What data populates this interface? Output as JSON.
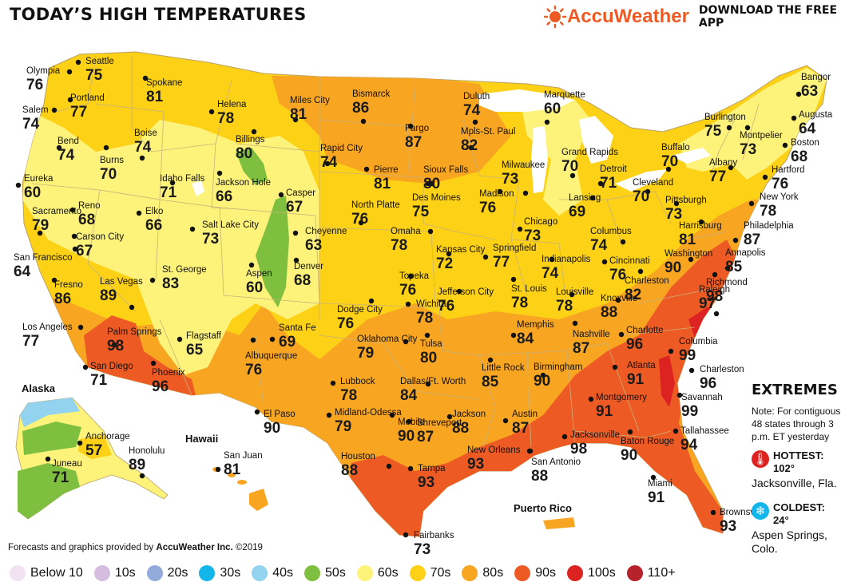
{
  "header": {
    "title": "TODAY’S HIGH TEMPERATURES",
    "brand": "AccuWeather",
    "cta": "DOWNLOAD THE FREE APP"
  },
  "colors": {
    "sixties": "#fdf27a",
    "seventies": "#fcd116",
    "eighties": "#f8a522",
    "nineties": "#ee5a24",
    "hundreds": "#dd2222",
    "fifties": "#7fbf3f",
    "forties": "#93d3f0",
    "state_line": "#c9b27a",
    "water": "#ffffff"
  },
  "regions": {
    "alaska": "Alaska",
    "hawaii": "Hawaii",
    "puerto_rico": "Puerto Rico"
  },
  "cities": [
    {
      "name": "Olympia",
      "temp": "76"
    },
    {
      "name": "Seattle",
      "temp": "75"
    },
    {
      "name": "Spokane",
      "temp": "81"
    },
    {
      "name": "Portland",
      "temp": "77"
    },
    {
      "name": "Salem",
      "temp": "74"
    },
    {
      "name": "Helena",
      "temp": "78"
    },
    {
      "name": "Miles City",
      "temp": "81"
    },
    {
      "name": "Bismarck",
      "temp": "86"
    },
    {
      "name": "Duluth",
      "temp": "74"
    },
    {
      "name": "Marquette",
      "temp": "60"
    },
    {
      "name": "Bangor",
      "temp": "63"
    },
    {
      "name": "Burlington",
      "temp": "75"
    },
    {
      "name": "Augusta",
      "temp": "64"
    },
    {
      "name": "Montpelier",
      "temp": "73"
    },
    {
      "name": "Boston",
      "temp": "68"
    },
    {
      "name": "Bend",
      "temp": "74"
    },
    {
      "name": "Boise",
      "temp": "74"
    },
    {
      "name": "Burns",
      "temp": "70"
    },
    {
      "name": "Billings",
      "temp": "80"
    },
    {
      "name": "Fargo",
      "temp": "87"
    },
    {
      "name": "Mpls-St. Paul",
      "temp": "82"
    },
    {
      "name": "Grand Rapids",
      "temp": "70"
    },
    {
      "name": "Buffalo",
      "temp": "70"
    },
    {
      "name": "Albany",
      "temp": "77"
    },
    {
      "name": "Hartford",
      "temp": "76"
    },
    {
      "name": "Eureka",
      "temp": "60"
    },
    {
      "name": "Idaho Falls",
      "temp": "71"
    },
    {
      "name": "Jackson Hole",
      "temp": "66"
    },
    {
      "name": "Rapid City",
      "temp": "74"
    },
    {
      "name": "Pierre",
      "temp": "81"
    },
    {
      "name": "Sioux Falls",
      "temp": "80"
    },
    {
      "name": "Milwaukee",
      "temp": "73"
    },
    {
      "name": "Detroit",
      "temp": "71"
    },
    {
      "name": "Cleveland",
      "temp": "70"
    },
    {
      "name": "Pittsburgh",
      "temp": "73"
    },
    {
      "name": "New York",
      "temp": "78"
    },
    {
      "name": "Reno",
      "temp": "68"
    },
    {
      "name": "Elko",
      "temp": "66"
    },
    {
      "name": "Casper",
      "temp": "67"
    },
    {
      "name": "Des Moines",
      "temp": "75"
    },
    {
      "name": "Madison",
      "temp": "76"
    },
    {
      "name": "Lansing",
      "temp": "69"
    },
    {
      "name": "Sacramento",
      "temp": "79"
    },
    {
      "name": "Carson City",
      "temp": "67"
    },
    {
      "name": "Salt Lake City",
      "temp": "73"
    },
    {
      "name": "Cheyenne",
      "temp": "63"
    },
    {
      "name": "North Platte",
      "temp": "76"
    },
    {
      "name": "Omaha",
      "temp": "78"
    },
    {
      "name": "Chicago",
      "temp": "73"
    },
    {
      "name": "Columbus",
      "temp": "74"
    },
    {
      "name": "Harrisburg",
      "temp": "81"
    },
    {
      "name": "Philadelphia",
      "temp": "87"
    },
    {
      "name": "San Francisco",
      "temp": "64"
    },
    {
      "name": "Denver",
      "temp": "68"
    },
    {
      "name": "Kansas City",
      "temp": "72"
    },
    {
      "name": "Springfield",
      "temp": "77"
    },
    {
      "name": "Indianapolis",
      "temp": "74"
    },
    {
      "name": "Cincinnati",
      "temp": "76"
    },
    {
      "name": "Washington",
      "temp": "90"
    },
    {
      "name": "Annapolis",
      "temp": "85"
    },
    {
      "name": "Aspen",
      "temp": "60"
    },
    {
      "name": "St. George",
      "temp": "83"
    },
    {
      "name": "Fresno",
      "temp": "86"
    },
    {
      "name": "Las Vegas",
      "temp": "89"
    },
    {
      "name": "Topeka",
      "temp": "76"
    },
    {
      "name": "Jefferson City",
      "temp": "76"
    },
    {
      "name": "St. Louis",
      "temp": "78"
    },
    {
      "name": "Louisville",
      "temp": "78"
    },
    {
      "name": "Charleston",
      "temp": "82"
    },
    {
      "name": "Richmond",
      "temp": "98"
    },
    {
      "name": "Dodge City",
      "temp": "76"
    },
    {
      "name": "Wichita",
      "temp": "78"
    },
    {
      "name": "Knoxville",
      "temp": "88"
    },
    {
      "name": "Raleigh",
      "temp": "97"
    },
    {
      "name": "Los Angeles",
      "temp": "77"
    },
    {
      "name": "Palm Springs",
      "temp": "98"
    },
    {
      "name": "Flagstaff",
      "temp": "65"
    },
    {
      "name": "Santa Fe",
      "temp": "69"
    },
    {
      "name": "Memphis",
      "temp": "84"
    },
    {
      "name": "Nashville",
      "temp": "87"
    },
    {
      "name": "Charlotte",
      "temp": "96"
    },
    {
      "name": "Columbia",
      "temp": "99"
    },
    {
      "name": "Oklahoma City",
      "temp": "79"
    },
    {
      "name": "Tulsa",
      "temp": "80"
    },
    {
      "name": "Albuquerque",
      "temp": "76"
    },
    {
      "name": "San Diego",
      "temp": "71"
    },
    {
      "name": "Little Rock",
      "temp": "85"
    },
    {
      "name": "Birmingham",
      "temp": "90"
    },
    {
      "name": "Atlanta",
      "temp": "91"
    },
    {
      "name": "Charleston",
      "temp": "96"
    },
    {
      "name": "Phoenix",
      "temp": "96"
    },
    {
      "name": "Lubbock",
      "temp": "78"
    },
    {
      "name": "Dallas/Ft. Worth",
      "temp": "84"
    },
    {
      "name": "Montgomery",
      "temp": "91"
    },
    {
      "name": "Savannah",
      "temp": "99"
    },
    {
      "name": "El Paso",
      "temp": "90"
    },
    {
      "name": "Midland-Odessa",
      "temp": "79"
    },
    {
      "name": "Shreveport",
      "temp": "87"
    },
    {
      "name": "Jackson",
      "temp": "88"
    },
    {
      "name": "Austin",
      "temp": "87"
    },
    {
      "name": "Mobile",
      "temp": "90"
    },
    {
      "name": "Jacksonville",
      "temp": "98"
    },
    {
      "name": "Tallahassee",
      "temp": "94"
    },
    {
      "name": "Baton Rouge",
      "temp": "90"
    },
    {
      "name": "New Orleans",
      "temp": "93"
    },
    {
      "name": "San Antonio",
      "temp": "88"
    },
    {
      "name": "Houston",
      "temp": "88"
    },
    {
      "name": "Tampa",
      "temp": "93"
    },
    {
      "name": "Miami",
      "temp": "91"
    },
    {
      "name": "Brownsville",
      "temp": "93"
    },
    {
      "name": "Fairbanks",
      "temp": "73"
    },
    {
      "name": "Anchorage",
      "temp": "57"
    },
    {
      "name": "Juneau",
      "temp": "71"
    },
    {
      "name": "Honolulu",
      "temp": "89"
    },
    {
      "name": "San Juan",
      "temp": "81"
    }
  ],
  "extremes": {
    "title": "EXTREMES",
    "note": "Note: For contiguous 48 states through 3 p.m. ET yesterday",
    "hottest_label": "HOTTEST:",
    "hottest_value": "102°",
    "hottest_place": "Jacksonville, Fla.",
    "coldest_label": "COLDEST:",
    "coldest_value": "24°",
    "coldest_place": "Aspen Springs, Colo."
  },
  "credit": {
    "prefix": "Forecasts and graphics provided by ",
    "company": "AccuWeather Inc.",
    "suffix": " ©2019"
  },
  "legend": [
    {
      "label": "Below 10",
      "color": "#f2e3f2"
    },
    {
      "label": "10s",
      "color": "#d5bde0"
    },
    {
      "label": "20s",
      "color": "#93abdb"
    },
    {
      "label": "30s",
      "color": "#12b6ea"
    },
    {
      "label": "40s",
      "color": "#93d3f0"
    },
    {
      "label": "50s",
      "color": "#7fbf3f"
    },
    {
      "label": "60s",
      "color": "#fdf27a"
    },
    {
      "label": "70s",
      "color": "#fcd116"
    },
    {
      "label": "80s",
      "color": "#f8a522"
    },
    {
      "label": "90s",
      "color": "#ee5a24"
    },
    {
      "label": "100s",
      "color": "#dd2222"
    },
    {
      "label": "110+",
      "color": "#b5222a"
    }
  ]
}
